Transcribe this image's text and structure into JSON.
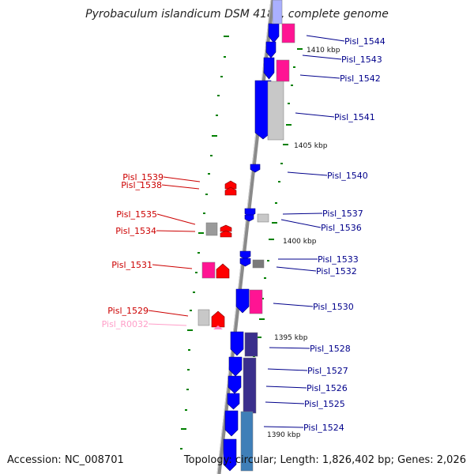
{
  "title": "Pyrobaculum islandicum DSM 4184, complete genome",
  "accession": "Accession: NC_008701",
  "summary": "Topology: circular; Length: 1,826,402 bp; Genes: 2,026",
  "colors": {
    "forward_cds": "#0000ff",
    "reverse_cds": "#ff0000",
    "pink_block": "#ff1493",
    "grey_block": "#c8c8c8",
    "purple_block": "#3a2f8c",
    "steel_block": "#3f7fb8",
    "tick": "#008000",
    "right_label": "#00008b",
    "left_label": "#cc0000",
    "rna_label": "#ff9ec8",
    "backbone": "#8a8a8a"
  },
  "scale_ticks": [
    "1410 kbp",
    "1405 kbp",
    "1400 kbp",
    "1395 kbp",
    "1390 kbp"
  ],
  "genes_right": [
    "Pisl_1544",
    "Pisl_1543",
    "Pisl_1542",
    "Pisl_1541",
    "Pisl_1540",
    "Pisl_1537",
    "Pisl_1536",
    "Pisl_1533",
    "Pisl_1532",
    "Pisl_1530",
    "Pisl_1528",
    "Pisl_1527",
    "Pisl_1526",
    "Pisl_1525",
    "Pisl_1524"
  ],
  "genes_left": [
    "Pisl_1539",
    "Pisl_1538",
    "Pisl_1535",
    "Pisl_1534",
    "Pisl_1531",
    "Pisl_1529"
  ],
  "rna_label": "Pisl_R0032"
}
